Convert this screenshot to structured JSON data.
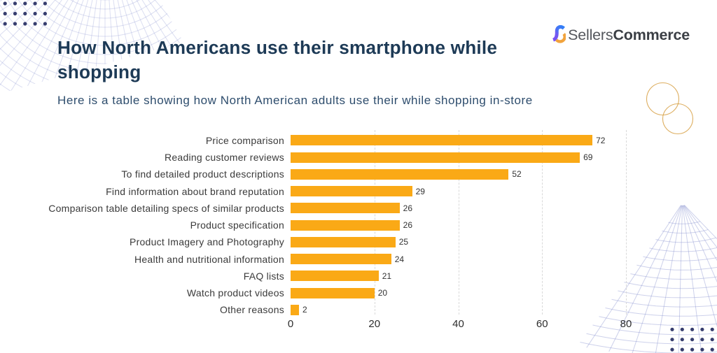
{
  "header": {
    "title": "How North Americans use their smartphone while shopping",
    "subtitle": "Here is a table showing how North American adults use their while shopping in-store",
    "title_color": "#1d3a56",
    "subtitle_color": "#2e4d6d"
  },
  "logo": {
    "name": "SellersCommerce",
    "text_regular": "Sellers",
    "text_bold": "Commerce",
    "icon": "sellerscommerce-s-icon",
    "icon_colors": {
      "blue": "#2e7cf6",
      "purple": "#7a4ff0",
      "gold": "#f6a92c"
    },
    "text_colors": {
      "regular": "#54575d",
      "bold": "#3b3f45"
    }
  },
  "chart_data": {
    "type": "bar",
    "orientation": "horizontal",
    "title": "How North Americans use their smartphone while shopping",
    "subtitle": "Here is a table showing how North American adults use their while shopping in-store",
    "categories": [
      "Price comparison",
      "Reading customer reviews",
      "To find detailed product descriptions",
      "Find information about brand reputation",
      "Comparison table detailing specs of similar products",
      "Product specification",
      "Product Imagery and Photography",
      "Health and nutritional information",
      "FAQ lists",
      "Watch product videos",
      "Other reasons"
    ],
    "values": [
      72,
      69,
      52,
      29,
      26,
      26,
      25,
      24,
      21,
      20,
      2
    ],
    "value_labels_shown": true,
    "xticks": [
      0,
      20,
      40,
      60,
      80
    ],
    "xlim": [
      0,
      80
    ],
    "xlabel": "",
    "ylabel": "",
    "grid": "vertical-dashed",
    "legend": "none",
    "bar_color": "#faa916",
    "label_color": "#3a3a3a",
    "value_label_color": "#333333",
    "tick_label_color": "#2d2d2d",
    "gridline_color": "#d9d9d9"
  },
  "decor": {
    "mesh_color": "#8891cf",
    "dot_color": "#363d6e",
    "circle_color": "#d7a044"
  }
}
